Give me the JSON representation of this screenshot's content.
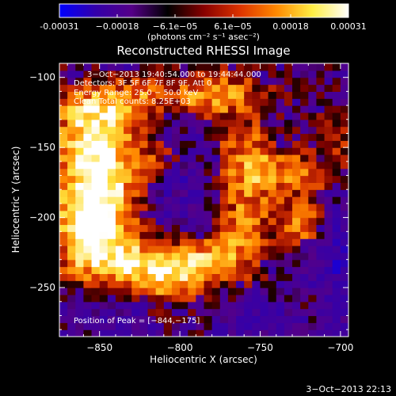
{
  "chart_data": {
    "type": "heatmap",
    "title": "Reconstructed RHESSI Image",
    "xlabel": "Heliocentric X (arcsec)",
    "ylabel": "Heliocentric Y (arcsec)",
    "xlim": [
      -875,
      -695
    ],
    "ylim": [
      -285,
      -90
    ],
    "x_ticks": [
      -850,
      -800,
      -750,
      -700
    ],
    "x_tick_labels": [
      "−850",
      "−800",
      "−750",
      "−700"
    ],
    "y_ticks": [
      -100,
      -150,
      -200,
      -250
    ],
    "y_tick_labels": [
      "−100",
      "−150",
      "−200",
      "−250"
    ],
    "colorbar": {
      "range": [
        -0.00031,
        0.00031
      ],
      "tick_labels": [
        "-0.00031",
        "−0.00018",
        "−6.1e−05",
        "6.1e−05",
        "0.00018",
        "0.00031"
      ],
      "unit_label": "(photons cm⁻² s⁻¹ asec⁻²)",
      "colors": [
        "#0000ff",
        "#3300aa",
        "#550088",
        "#000000",
        "#880000",
        "#dd3300",
        "#ff8800",
        "#ffee44",
        "#ffffff"
      ]
    },
    "annotations": {
      "time": "3−Oct−2013 19:40:54.000 to 19:44:44.000",
      "detectors": "Detectors: 3F 5F 6F 7F 8F 9F, Att 0",
      "energy": "Energy Range: 25.0 − 50.0 keV",
      "clean": "Clean     Total counts: 8.25E+03",
      "peak": "Position of Peak = [−844,−175]"
    },
    "peak_position": [
      -844,
      -175
    ],
    "blobs": [
      {
        "x": -850,
        "y": -175,
        "sx": 18,
        "sy": 24,
        "a": 1.0
      },
      {
        "x": -858,
        "y": -215,
        "sx": 14,
        "sy": 22,
        "a": 0.9
      },
      {
        "x": -855,
        "y": -140,
        "sx": 16,
        "sy": 16,
        "a": 0.6
      },
      {
        "x": -838,
        "y": -118,
        "sx": 28,
        "sy": 12,
        "a": 0.65
      },
      {
        "x": -778,
        "y": -112,
        "sx": 22,
        "sy": 12,
        "a": 0.6
      },
      {
        "x": -758,
        "y": -158,
        "sx": 14,
        "sy": 20,
        "a": 0.6
      },
      {
        "x": -728,
        "y": -170,
        "sx": 16,
        "sy": 12,
        "a": 0.55
      },
      {
        "x": -760,
        "y": -208,
        "sx": 12,
        "sy": 22,
        "a": 0.55
      },
      {
        "x": -725,
        "y": -205,
        "sx": 10,
        "sy": 10,
        "a": 0.7
      },
      {
        "x": -812,
        "y": -242,
        "sx": 18,
        "sy": 14,
        "a": 0.65
      },
      {
        "x": -788,
        "y": -232,
        "sx": 18,
        "sy": 12,
        "a": 0.7
      },
      {
        "x": -835,
        "y": -228,
        "sx": 14,
        "sy": 14,
        "a": 0.5
      },
      {
        "x": -812,
        "y": -160,
        "sx": 10,
        "sy": 10,
        "a": 0.4
      },
      {
        "x": -700,
        "y": -140,
        "sx": 12,
        "sy": 14,
        "a": 0.3
      },
      {
        "x": -720,
        "y": -262,
        "sx": 12,
        "sy": 10,
        "a": 0.35
      }
    ],
    "dim_regions": [
      {
        "x": -800,
        "y": -178,
        "sx": 14,
        "sy": 16,
        "a": -0.45
      },
      {
        "x": -702,
        "y": -248,
        "sx": 16,
        "sy": 22,
        "a": -0.5
      },
      {
        "x": -745,
        "y": -272,
        "sx": 18,
        "sy": 10,
        "a": -0.45
      },
      {
        "x": -845,
        "y": -268,
        "sx": 16,
        "sy": 10,
        "a": -0.35
      },
      {
        "x": -805,
        "y": -128,
        "sx": 10,
        "sy": 10,
        "a": -0.35
      },
      {
        "x": -700,
        "y": -210,
        "sx": 8,
        "sy": 14,
        "a": -0.4
      }
    ]
  },
  "footer": {
    "timestamp": "3−Oct−2013 22:13"
  }
}
